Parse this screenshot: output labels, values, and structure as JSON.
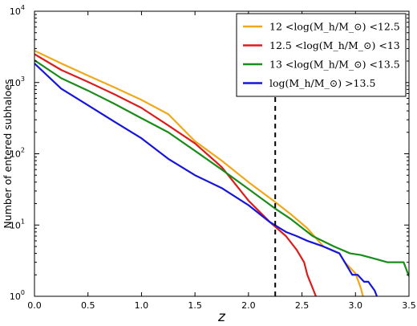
{
  "chart_data": {
    "type": "line",
    "xlabel": "z",
    "ylabel": "Number of entered subhaloes",
    "xlim": [
      0.0,
      3.5
    ],
    "ylim": [
      1,
      10000
    ],
    "yscale": "log",
    "grid": false,
    "legend_position": "top-right",
    "x_tick_labels": [
      "0.0",
      "0.5",
      "1.0",
      "1.5",
      "2.0",
      "2.5",
      "3.0",
      "3.5"
    ],
    "y_tick_labels": [
      {
        "base": "10",
        "exp": "0"
      },
      {
        "base": "10",
        "exp": "1"
      },
      {
        "base": "10",
        "exp": "2"
      },
      {
        "base": "10",
        "exp": "3"
      },
      {
        "base": "10",
        "exp": "4"
      }
    ],
    "reference_line": {
      "x": 2.25,
      "style": "dashed",
      "color": "#000000"
    },
    "series": [
      {
        "name": "12 <log(M_h/M_⊙) <12.5",
        "color": "#f0a818",
        "points": [
          [
            0,
            2800
          ],
          [
            0.25,
            1850
          ],
          [
            0.5,
            1250
          ],
          [
            0.75,
            850
          ],
          [
            1.0,
            570
          ],
          [
            1.25,
            360
          ],
          [
            1.5,
            150
          ],
          [
            1.75,
            80
          ],
          [
            2.0,
            40
          ],
          [
            2.25,
            21
          ],
          [
            2.4,
            14
          ],
          [
            2.55,
            9
          ],
          [
            2.7,
            5
          ],
          [
            2.85,
            4
          ],
          [
            2.9,
            3
          ],
          [
            3.0,
            2.1
          ],
          [
            3.05,
            1.3
          ],
          [
            3.07,
            1
          ]
        ]
      },
      {
        "name": "12.5 <log(M_h/M_⊙) <13",
        "color": "#dd1c1c",
        "points": [
          [
            0,
            2500
          ],
          [
            0.25,
            1500
          ],
          [
            0.5,
            1020
          ],
          [
            0.75,
            680
          ],
          [
            1.0,
            440
          ],
          [
            1.25,
            250
          ],
          [
            1.5,
            140
          ],
          [
            1.75,
            65
          ],
          [
            2.0,
            22
          ],
          [
            2.2,
            11
          ],
          [
            2.35,
            7
          ],
          [
            2.45,
            4.5
          ],
          [
            2.52,
            3
          ],
          [
            2.55,
            2
          ],
          [
            2.6,
            1.3
          ],
          [
            2.63,
            1
          ]
        ]
      },
      {
        "name": "13 <log(M_h/M_⊙) <13.5",
        "color": "#1a8c1a",
        "points": [
          [
            0,
            2050
          ],
          [
            0.25,
            1150
          ],
          [
            0.5,
            770
          ],
          [
            0.75,
            500
          ],
          [
            1.0,
            315
          ],
          [
            1.25,
            200
          ],
          [
            1.5,
            110
          ],
          [
            1.75,
            60
          ],
          [
            2.0,
            32
          ],
          [
            2.25,
            17
          ],
          [
            2.4,
            12
          ],
          [
            2.6,
            7
          ],
          [
            2.8,
            5
          ],
          [
            2.95,
            4
          ],
          [
            3.05,
            3.8
          ],
          [
            3.2,
            3.3
          ],
          [
            3.3,
            3.0
          ],
          [
            3.45,
            3.0
          ],
          [
            3.5,
            1.9
          ]
        ]
      },
      {
        "name": "log(M_h/M_⊙) >13.5",
        "color": "#1515dd",
        "points": [
          [
            0,
            1850
          ],
          [
            0.25,
            820
          ],
          [
            0.5,
            480
          ],
          [
            0.75,
            280
          ],
          [
            1.0,
            165
          ],
          [
            1.25,
            85
          ],
          [
            1.5,
            50
          ],
          [
            1.75,
            33
          ],
          [
            2.0,
            19
          ],
          [
            2.2,
            11
          ],
          [
            2.35,
            8
          ],
          [
            2.45,
            7
          ],
          [
            2.55,
            6
          ],
          [
            2.7,
            5
          ],
          [
            2.85,
            4
          ],
          [
            2.9,
            3
          ],
          [
            2.97,
            2
          ],
          [
            3.02,
            2
          ],
          [
            3.08,
            1.6
          ],
          [
            3.12,
            1.6
          ],
          [
            3.18,
            1.2
          ],
          [
            3.2,
            1
          ]
        ]
      }
    ]
  }
}
